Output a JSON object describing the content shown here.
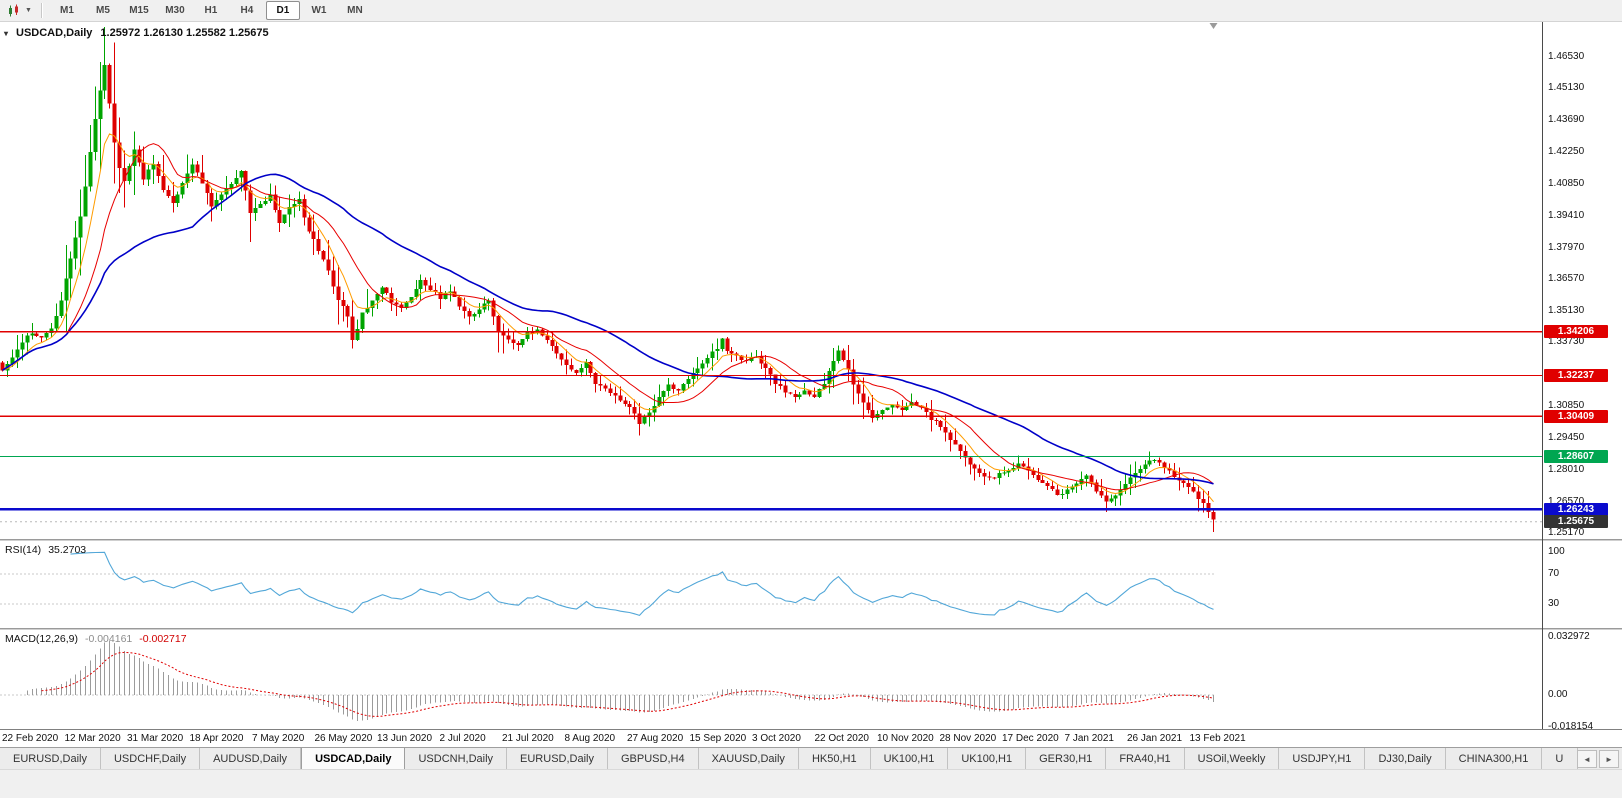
{
  "toolbar": {
    "timeframes": [
      "M1",
      "M5",
      "M15",
      "M30",
      "H1",
      "H4",
      "D1",
      "W1",
      "MN"
    ],
    "active_timeframe": "D1",
    "chart_style_icon": "candlestick-chart-icon",
    "caret_icon": "caret-down",
    "caret_glyph": "▼"
  },
  "main_chart": {
    "title_symbol": "USDCAD,Daily",
    "title_ohlc": "1.25972 1.26130 1.25582 1.25675",
    "marker_glyph": "▾",
    "price_axis_labels": [
      "1.46530",
      "1.45130",
      "1.43690",
      "1.42250",
      "1.40850",
      "1.39410",
      "1.37970",
      "1.36570",
      "1.35130",
      "1.33730",
      "1.30850",
      "1.29450",
      "1.28010",
      "1.26570",
      "1.25170"
    ],
    "level_badges": [
      {
        "label": "1.34206",
        "price": 1.34206,
        "color": "#e00000",
        "type": "resistance-line"
      },
      {
        "label": "1.32237",
        "price": 1.32237,
        "color": "#e00000",
        "type": "resistance-line"
      },
      {
        "label": "1.30409",
        "price": 1.30409,
        "color": "#e00000",
        "type": "resistance-line"
      },
      {
        "label": "1.28607",
        "price": 1.28607,
        "color": "#00a651",
        "type": "support-line"
      },
      {
        "label": "1.26243",
        "price": 1.26243,
        "color": "#0a0acd",
        "type": "support-line",
        "thick": true
      },
      {
        "label": "1.25675",
        "price": 1.25675,
        "color": "#333333",
        "type": "current-price"
      }
    ]
  },
  "chart_data": {
    "type": "candlestick",
    "symbol": "USDCAD",
    "timeframe": "Daily",
    "ohlc_current": {
      "open": "1.25972",
      "high": "1.26130",
      "low": "1.25582",
      "close": "1.25675"
    },
    "x_range": [
      "22 Feb 2020",
      "13 Feb 2021"
    ],
    "ylim": [
      1.249,
      1.481
    ],
    "num_candles": 250,
    "close_jitter": 0.0016,
    "spike_high": [
      21,
      1.4653
    ],
    "close_waypoints": [
      [
        0,
        1.3245
      ],
      [
        2,
        1.33
      ],
      [
        4,
        1.3375
      ],
      [
        6,
        1.342
      ],
      [
        8,
        1.339
      ],
      [
        10,
        1.343
      ],
      [
        12,
        1.356
      ],
      [
        14,
        1.375
      ],
      [
        16,
        1.393
      ],
      [
        18,
        1.423
      ],
      [
        20,
        1.451
      ],
      [
        21,
        1.462
      ],
      [
        22,
        1.445
      ],
      [
        23,
        1.427
      ],
      [
        24,
        1.416
      ],
      [
        25,
        1.409
      ],
      [
        26,
        1.416
      ],
      [
        27,
        1.424
      ],
      [
        29,
        1.411
      ],
      [
        31,
        1.417
      ],
      [
        33,
        1.406
      ],
      [
        35,
        1.399
      ],
      [
        37,
        1.409
      ],
      [
        39,
        1.417
      ],
      [
        41,
        1.409
      ],
      [
        43,
        1.399
      ],
      [
        45,
        1.403
      ],
      [
        47,
        1.409
      ],
      [
        49,
        1.414
      ],
      [
        51,
        1.396
      ],
      [
        53,
        1.399
      ],
      [
        55,
        1.403
      ],
      [
        57,
        1.391
      ],
      [
        59,
        1.398
      ],
      [
        61,
        1.401
      ],
      [
        63,
        1.387
      ],
      [
        65,
        1.379
      ],
      [
        67,
        1.369
      ],
      [
        69,
        1.357
      ],
      [
        71,
        1.349
      ],
      [
        72,
        1.339
      ],
      [
        73,
        1.343
      ],
      [
        74,
        1.35
      ],
      [
        76,
        1.356
      ],
      [
        78,
        1.362
      ],
      [
        80,
        1.356
      ],
      [
        82,
        1.353
      ],
      [
        84,
        1.357
      ],
      [
        86,
        1.365
      ],
      [
        88,
        1.361
      ],
      [
        90,
        1.357
      ],
      [
        92,
        1.36
      ],
      [
        94,
        1.354
      ],
      [
        96,
        1.349
      ],
      [
        98,
        1.352
      ],
      [
        100,
        1.356
      ],
      [
        102,
        1.342
      ],
      [
        104,
        1.339
      ],
      [
        106,
        1.336
      ],
      [
        108,
        1.341
      ],
      [
        110,
        1.343
      ],
      [
        112,
        1.339
      ],
      [
        114,
        1.332
      ],
      [
        116,
        1.327
      ],
      [
        118,
        1.324
      ],
      [
        120,
        1.328
      ],
      [
        122,
        1.319
      ],
      [
        124,
        1.317
      ],
      [
        126,
        1.313
      ],
      [
        128,
        1.31
      ],
      [
        130,
        1.306
      ],
      [
        131,
        1.301
      ],
      [
        133,
        1.306
      ],
      [
        135,
        1.313
      ],
      [
        137,
        1.318
      ],
      [
        139,
        1.316
      ],
      [
        141,
        1.321
      ],
      [
        143,
        1.325
      ],
      [
        145,
        1.33
      ],
      [
        147,
        1.335
      ],
      [
        148,
        1.339
      ],
      [
        149,
        1.334
      ],
      [
        151,
        1.331
      ],
      [
        153,
        1.329
      ],
      [
        155,
        1.331
      ],
      [
        157,
        1.326
      ],
      [
        159,
        1.319
      ],
      [
        161,
        1.315
      ],
      [
        163,
        1.313
      ],
      [
        165,
        1.316
      ],
      [
        167,
        1.313
      ],
      [
        169,
        1.319
      ],
      [
        171,
        1.329
      ],
      [
        172,
        1.334
      ],
      [
        173,
        1.33
      ],
      [
        175,
        1.319
      ],
      [
        177,
        1.311
      ],
      [
        179,
        1.303
      ],
      [
        181,
        1.307
      ],
      [
        183,
        1.31
      ],
      [
        185,
        1.307
      ],
      [
        187,
        1.311
      ],
      [
        189,
        1.308
      ],
      [
        191,
        1.303
      ],
      [
        193,
        1.3
      ],
      [
        195,
        1.294
      ],
      [
        197,
        1.288
      ],
      [
        199,
        1.283
      ],
      [
        201,
        1.279
      ],
      [
        203,
        1.276
      ],
      [
        205,
        1.278
      ],
      [
        207,
        1.28
      ],
      [
        209,
        1.283
      ],
      [
        211,
        1.279
      ],
      [
        213,
        1.275
      ],
      [
        215,
        1.273
      ],
      [
        217,
        1.269
      ],
      [
        219,
        1.271
      ],
      [
        221,
        1.274
      ],
      [
        223,
        1.277
      ],
      [
        225,
        1.271
      ],
      [
        227,
        1.266
      ],
      [
        229,
        1.269
      ],
      [
        231,
        1.274
      ],
      [
        233,
        1.279
      ],
      [
        235,
        1.283
      ],
      [
        237,
        1.285
      ],
      [
        239,
        1.281
      ],
      [
        241,
        1.277
      ],
      [
        243,
        1.274
      ],
      [
        245,
        1.27
      ],
      [
        247,
        1.265
      ],
      [
        248,
        1.261
      ],
      [
        249,
        1.2572
      ]
    ],
    "moving_averages": [
      {
        "type": "ema",
        "period": 7,
        "color": "#ff9c00",
        "width": 1
      },
      {
        "type": "sma",
        "period": 14,
        "color": "#e80000",
        "width": 1
      },
      {
        "type": "sma",
        "period": 40,
        "color": "#0000c8",
        "width": 1.6
      }
    ],
    "horizontal_levels": [
      1.34206,
      1.32237,
      1.30409,
      1.28607,
      1.26243
    ],
    "colors": {
      "up": "#00a400",
      "down": "#de0000",
      "background": "#ffffff"
    }
  },
  "rsi_panel": {
    "name": "RSI(14)",
    "value": "35.2703",
    "period": 14,
    "color": "#52a7d8",
    "levels": [
      {
        "value": 100,
        "label": "100",
        "line": false
      },
      {
        "value": 70,
        "label": "70",
        "line": true
      },
      {
        "value": 30,
        "label": "30",
        "line": true
      }
    ]
  },
  "macd_panel": {
    "name": "MACD(12,26,9)",
    "value_main": "-0.004161",
    "value_signal": "-0.002717",
    "params": {
      "fast": 12,
      "slow": 26,
      "signal": 9
    },
    "axis_labels": [
      {
        "value": 0.032972,
        "label": "0.032972"
      },
      {
        "value": 0,
        "label": "0.00"
      },
      {
        "value": -0.018154,
        "label": "-0.018154"
      }
    ],
    "colors": {
      "histogram": "#9b9b9b",
      "signal": "#e00000"
    }
  },
  "date_axis": [
    "22 Feb 2020",
    "12 Mar 2020",
    "31 Mar 2020",
    "18 Apr 2020",
    "7 May 2020",
    "26 May 2020",
    "13 Jun 2020",
    "2 Jul 2020",
    "21 Jul 2020",
    "8 Aug 2020",
    "27 Aug 2020",
    "15 Sep 2020",
    "3 Oct 2020",
    "22 Oct 2020",
    "10 Nov 2020",
    "28 Nov 2020",
    "17 Dec 2020",
    "7 Jan 2021",
    "26 Jan 2021",
    "13 Feb 2021"
  ],
  "tabs": {
    "items": [
      {
        "label": "EURUSD,Daily"
      },
      {
        "label": "USDCHF,Daily"
      },
      {
        "label": "AUDUSD,Daily"
      },
      {
        "label": "USDCAD,Daily",
        "active": true
      },
      {
        "label": "USDCNH,Daily"
      },
      {
        "label": "EURUSD,Daily"
      },
      {
        "label": "GBPUSD,H4"
      },
      {
        "label": "XAUUSD,Daily"
      },
      {
        "label": "HK50,H1"
      },
      {
        "label": "UK100,H1"
      },
      {
        "label": "UK100,H1"
      },
      {
        "label": "GER30,H1"
      },
      {
        "label": "FRA40,H1"
      },
      {
        "label": "USOil,Weekly"
      },
      {
        "label": "USDJPY,H1"
      },
      {
        "label": "DJ30,Daily"
      },
      {
        "label": "CHINA300,H1"
      },
      {
        "label": "U",
        "truncated": true
      }
    ],
    "nav_left": "◄",
    "nav_right": "►"
  }
}
